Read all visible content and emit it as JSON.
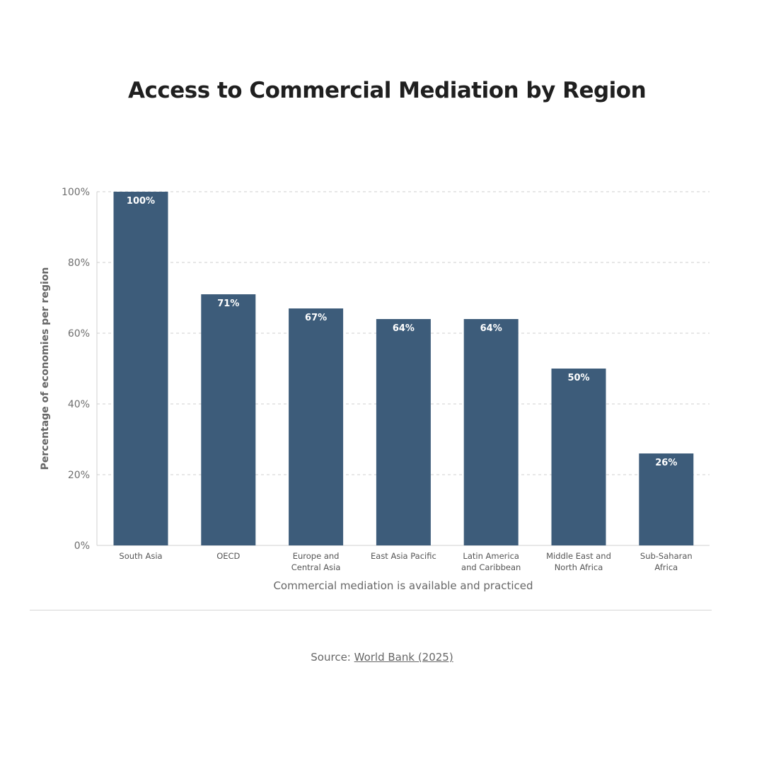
{
  "chart_data": {
    "type": "bar",
    "title": "Access to Commercial Mediation by Region",
    "categories": [
      [
        "South Asia"
      ],
      [
        "OECD"
      ],
      [
        "Europe and",
        "Central Asia"
      ],
      [
        "East Asia Pacific"
      ],
      [
        "Latin America",
        "and Caribbean"
      ],
      [
        "Middle East and",
        "North Africa"
      ],
      [
        "Sub-Saharan",
        "Africa"
      ]
    ],
    "values": [
      100,
      71,
      67,
      64,
      64,
      50,
      26
    ],
    "value_labels": [
      "100%",
      "71%",
      "67%",
      "64%",
      "64%",
      "50%",
      "26%"
    ],
    "xlabel": "Commercial mediation is available and practiced",
    "ylabel": "Percentage of economies per region",
    "ylim": [
      0,
      100
    ],
    "yticks": [
      0,
      20,
      40,
      60,
      80,
      100
    ],
    "ytick_labels": [
      "0%",
      "20%",
      "40%",
      "60%",
      "80%",
      "100%"
    ],
    "grid": true,
    "bar_color": "#3d5c7a"
  },
  "source": {
    "prefix": "Source: ",
    "link_text": "World Bank (2025)"
  }
}
